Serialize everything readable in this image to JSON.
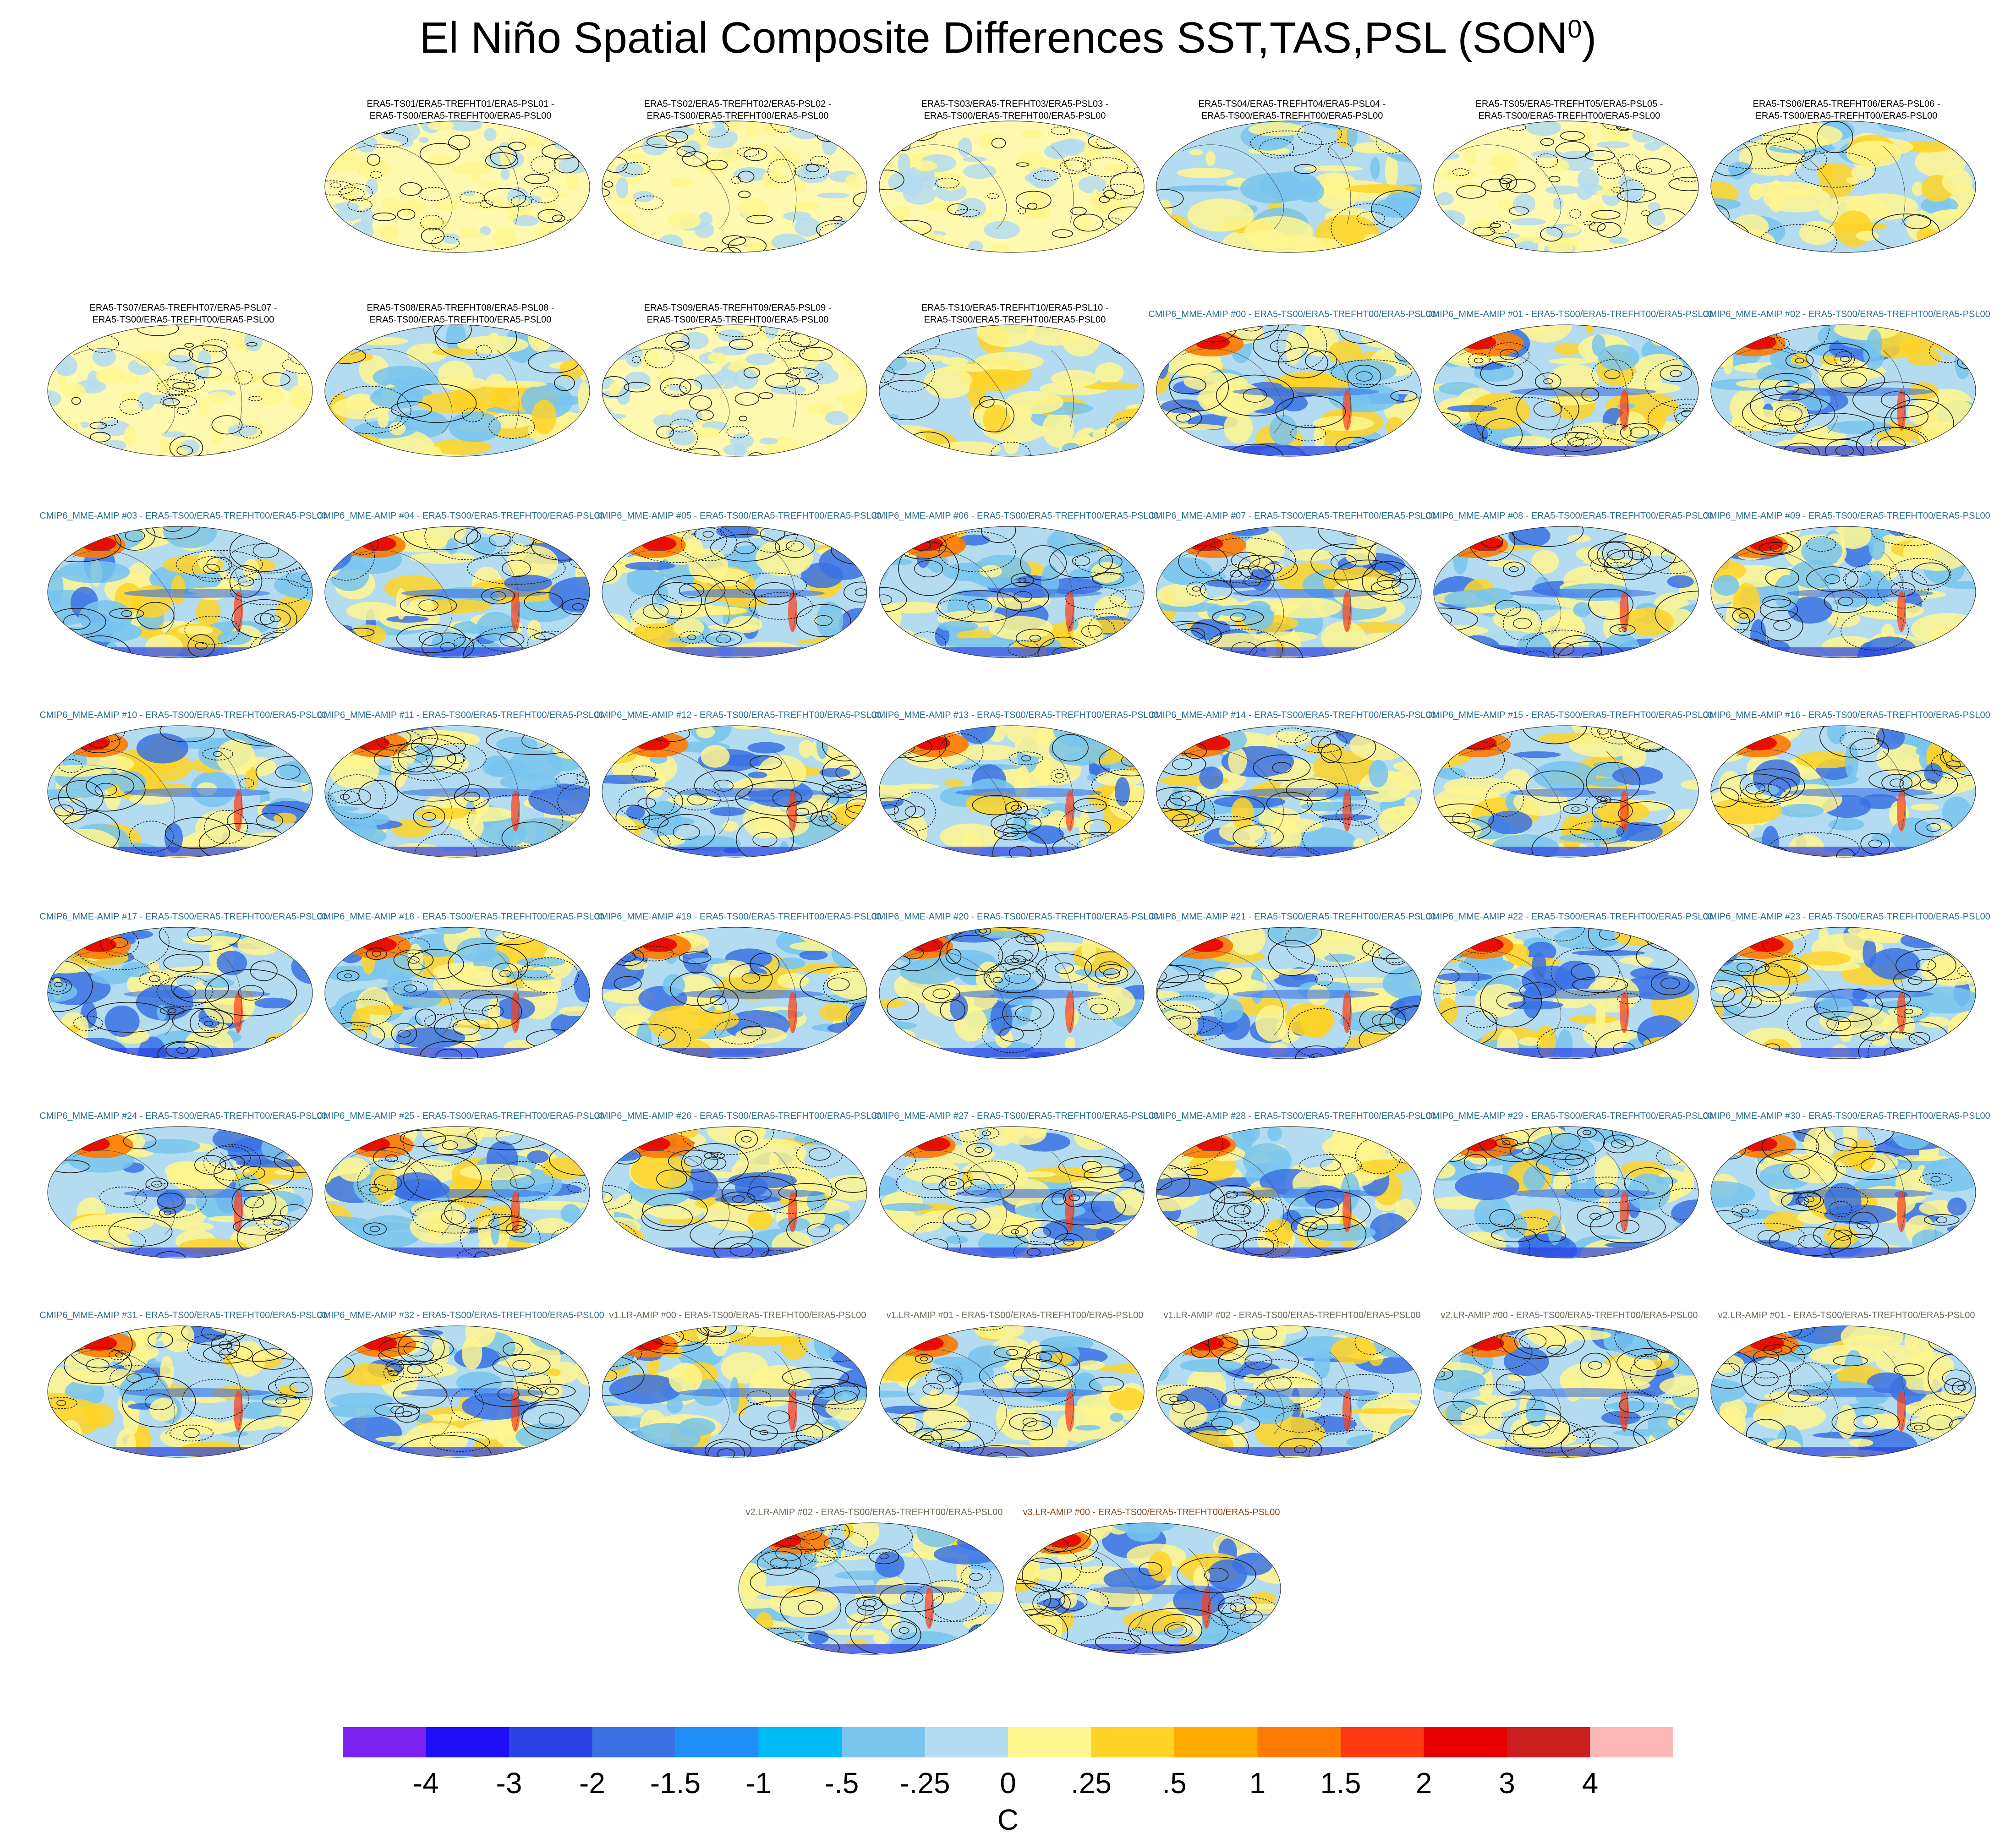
{
  "title_main": "El Niño Spatial Composite Differences SST,TAS,PSL (SON",
  "title_sup": "0",
  "title_end": ")",
  "colors": {
    "ocean_base": "#b4dcf0",
    "warm": "#fff68f",
    "hot": "#ff4a1a",
    "cold": "#3a7be0",
    "contour": "#1a1a1a"
  },
  "panels": [
    {
      "l1": "ERA5-TS01/ERA5-TREFHT01/ERA5-PSL01 -",
      "l2": "ERA5-TS00/ERA5-TREFHT00/ERA5-PSL00",
      "style": "obs",
      "kind": "noise"
    },
    {
      "l1": "ERA5-TS02/ERA5-TREFHT02/ERA5-PSL02 -",
      "l2": "ERA5-TS00/ERA5-TREFHT00/ERA5-PSL00",
      "style": "obs",
      "kind": "noise"
    },
    {
      "l1": "ERA5-TS03/ERA5-TREFHT03/ERA5-PSL03 -",
      "l2": "ERA5-TS00/ERA5-TREFHT00/ERA5-PSL00",
      "style": "obs",
      "kind": "noise"
    },
    {
      "l1": "ERA5-TS04/ERA5-TREFHT04/ERA5-PSL04 -",
      "l2": "ERA5-TS00/ERA5-TREFHT00/ERA5-PSL00",
      "style": "obs",
      "kind": "mild"
    },
    {
      "l1": "ERA5-TS05/ERA5-TREFHT05/ERA5-PSL05 -",
      "l2": "ERA5-TS00/ERA5-TREFHT00/ERA5-PSL00",
      "style": "obs",
      "kind": "noise"
    },
    {
      "l1": "ERA5-TS06/ERA5-TREFHT06/ERA5-PSL06 -",
      "l2": "ERA5-TS00/ERA5-TREFHT00/ERA5-PSL00",
      "style": "obs",
      "kind": "mild"
    },
    {
      "l1": "ERA5-TS07/ERA5-TREFHT07/ERA5-PSL07 -",
      "l2": "ERA5-TS00/ERA5-TREFHT00/ERA5-PSL00",
      "style": "obs",
      "kind": "noise"
    },
    {
      "l1": "ERA5-TS08/ERA5-TREFHT08/ERA5-PSL08 -",
      "l2": "ERA5-TS00/ERA5-TREFHT00/ERA5-PSL00",
      "style": "obs",
      "kind": "mild"
    },
    {
      "l1": "ERA5-TS09/ERA5-TREFHT09/ERA5-PSL09 -",
      "l2": "ERA5-TS00/ERA5-TREFHT00/ERA5-PSL00",
      "style": "obs",
      "kind": "noise"
    },
    {
      "l1": "ERA5-TS10/ERA5-TREFHT10/ERA5-PSL10 -",
      "l2": "ERA5-TS00/ERA5-TREFHT00/ERA5-PSL00",
      "style": "obs",
      "kind": "mild"
    },
    {
      "l1": "CMIP6_MME-AMIP  #00 - ERA5-TS00/ERA5-TREFHT00/ERA5-PSL00",
      "l2": "",
      "style": "sub",
      "kind": "model"
    },
    {
      "l1": "CMIP6_MME-AMIP  #01 - ERA5-TS00/ERA5-TREFHT00/ERA5-PSL00",
      "l2": "",
      "style": "sub",
      "kind": "model"
    },
    {
      "l1": "CMIP6_MME-AMIP  #02 - ERA5-TS00/ERA5-TREFHT00/ERA5-PSL00",
      "l2": "",
      "style": "sub",
      "kind": "model"
    },
    {
      "l1": "CMIP6_MME-AMIP  #03 - ERA5-TS00/ERA5-TREFHT00/ERA5-PSL00",
      "l2": "",
      "style": "sub",
      "kind": "model"
    },
    {
      "l1": "CMIP6_MME-AMIP  #04 - ERA5-TS00/ERA5-TREFHT00/ERA5-PSL00",
      "l2": "",
      "style": "sub",
      "kind": "model"
    },
    {
      "l1": "CMIP6_MME-AMIP  #05 - ERA5-TS00/ERA5-TREFHT00/ERA5-PSL00",
      "l2": "",
      "style": "sub",
      "kind": "model"
    },
    {
      "l1": "CMIP6_MME-AMIP  #06 - ERA5-TS00/ERA5-TREFHT00/ERA5-PSL00",
      "l2": "",
      "style": "sub",
      "kind": "model"
    },
    {
      "l1": "CMIP6_MME-AMIP  #07 - ERA5-TS00/ERA5-TREFHT00/ERA5-PSL00",
      "l2": "",
      "style": "sub",
      "kind": "model"
    },
    {
      "l1": "CMIP6_MME-AMIP  #08 - ERA5-TS00/ERA5-TREFHT00/ERA5-PSL00",
      "l2": "",
      "style": "sub",
      "kind": "model"
    },
    {
      "l1": "CMIP6_MME-AMIP  #09 - ERA5-TS00/ERA5-TREFHT00/ERA5-PSL00",
      "l2": "",
      "style": "sub",
      "kind": "model"
    },
    {
      "l1": "CMIP6_MME-AMIP  #10 - ERA5-TS00/ERA5-TREFHT00/ERA5-PSL00",
      "l2": "",
      "style": "sub",
      "kind": "model"
    },
    {
      "l1": "CMIP6_MME-AMIP  #11 - ERA5-TS00/ERA5-TREFHT00/ERA5-PSL00",
      "l2": "",
      "style": "sub",
      "kind": "model"
    },
    {
      "l1": "CMIP6_MME-AMIP  #12 - ERA5-TS00/ERA5-TREFHT00/ERA5-PSL00",
      "l2": "",
      "style": "sub",
      "kind": "model"
    },
    {
      "l1": "CMIP6_MME-AMIP  #13 - ERA5-TS00/ERA5-TREFHT00/ERA5-PSL00",
      "l2": "",
      "style": "sub",
      "kind": "model"
    },
    {
      "l1": "CMIP6_MME-AMIP  #14 - ERA5-TS00/ERA5-TREFHT00/ERA5-PSL00",
      "l2": "",
      "style": "sub",
      "kind": "model"
    },
    {
      "l1": "CMIP6_MME-AMIP  #15 - ERA5-TS00/ERA5-TREFHT00/ERA5-PSL00",
      "l2": "",
      "style": "sub",
      "kind": "model"
    },
    {
      "l1": "CMIP6_MME-AMIP  #16 - ERA5-TS00/ERA5-TREFHT00/ERA5-PSL00",
      "l2": "",
      "style": "sub",
      "kind": "model"
    },
    {
      "l1": "CMIP6_MME-AMIP  #17 - ERA5-TS00/ERA5-TREFHT00/ERA5-PSL00",
      "l2": "",
      "style": "sub",
      "kind": "model"
    },
    {
      "l1": "CMIP6_MME-AMIP  #18 - ERA5-TS00/ERA5-TREFHT00/ERA5-PSL00",
      "l2": "",
      "style": "sub",
      "kind": "model"
    },
    {
      "l1": "CMIP6_MME-AMIP  #19 - ERA5-TS00/ERA5-TREFHT00/ERA5-PSL00",
      "l2": "",
      "style": "sub",
      "kind": "model"
    },
    {
      "l1": "CMIP6_MME-AMIP  #20 - ERA5-TS00/ERA5-TREFHT00/ERA5-PSL00",
      "l2": "",
      "style": "sub",
      "kind": "model"
    },
    {
      "l1": "CMIP6_MME-AMIP  #21 - ERA5-TS00/ERA5-TREFHT00/ERA5-PSL00",
      "l2": "",
      "style": "sub",
      "kind": "model"
    },
    {
      "l1": "CMIP6_MME-AMIP  #22 - ERA5-TS00/ERA5-TREFHT00/ERA5-PSL00",
      "l2": "",
      "style": "sub",
      "kind": "model"
    },
    {
      "l1": "CMIP6_MME-AMIP  #23 - ERA5-TS00/ERA5-TREFHT00/ERA5-PSL00",
      "l2": "",
      "style": "sub",
      "kind": "model"
    },
    {
      "l1": "CMIP6_MME-AMIP  #24 - ERA5-TS00/ERA5-TREFHT00/ERA5-PSL00",
      "l2": "",
      "style": "sub",
      "kind": "model"
    },
    {
      "l1": "CMIP6_MME-AMIP  #25 - ERA5-TS00/ERA5-TREFHT00/ERA5-PSL00",
      "l2": "",
      "style": "sub",
      "kind": "model"
    },
    {
      "l1": "CMIP6_MME-AMIP  #26 - ERA5-TS00/ERA5-TREFHT00/ERA5-PSL00",
      "l2": "",
      "style": "sub",
      "kind": "model"
    },
    {
      "l1": "CMIP6_MME-AMIP  #27 - ERA5-TS00/ERA5-TREFHT00/ERA5-PSL00",
      "l2": "",
      "style": "sub",
      "kind": "model"
    },
    {
      "l1": "CMIP6_MME-AMIP  #28 - ERA5-TS00/ERA5-TREFHT00/ERA5-PSL00",
      "l2": "",
      "style": "sub",
      "kind": "model"
    },
    {
      "l1": "CMIP6_MME-AMIP  #29 - ERA5-TS00/ERA5-TREFHT00/ERA5-PSL00",
      "l2": "",
      "style": "sub",
      "kind": "model"
    },
    {
      "l1": "CMIP6_MME-AMIP  #30 - ERA5-TS00/ERA5-TREFHT00/ERA5-PSL00",
      "l2": "",
      "style": "sub",
      "kind": "model"
    },
    {
      "l1": "CMIP6_MME-AMIP  #31 - ERA5-TS00/ERA5-TREFHT00/ERA5-PSL00",
      "l2": "",
      "style": "sub",
      "kind": "model"
    },
    {
      "l1": "CMIP6_MME-AMIP  #32 - ERA5-TS00/ERA5-TREFHT00/ERA5-PSL00",
      "l2": "",
      "style": "sub",
      "kind": "model"
    },
    {
      "l1": "v1.LR-AMIP  #00 - ERA5-TS00/ERA5-TREFHT00/ERA5-PSL00",
      "l2": "",
      "style": "grey",
      "kind": "model"
    },
    {
      "l1": "v1.LR-AMIP  #01 - ERA5-TS00/ERA5-TREFHT00/ERA5-PSL00",
      "l2": "",
      "style": "grey",
      "kind": "model"
    },
    {
      "l1": "v1.LR-AMIP  #02 - ERA5-TS00/ERA5-TREFHT00/ERA5-PSL00",
      "l2": "",
      "style": "grey",
      "kind": "model"
    },
    {
      "l1": "v2.LR-AMIP  #00 - ERA5-TS00/ERA5-TREFHT00/ERA5-PSL00",
      "l2": "",
      "style": "grey",
      "kind": "model"
    },
    {
      "l1": "v2.LR-AMIP  #01 - ERA5-TS00/ERA5-TREFHT00/ERA5-PSL00",
      "l2": "",
      "style": "grey",
      "kind": "model"
    },
    {
      "l1": "v2.LR-AMIP  #02 - ERA5-TS00/ERA5-TREFHT00/ERA5-PSL00",
      "l2": "",
      "style": "grey",
      "kind": "model"
    },
    {
      "l1": "v3.LR-AMIP  #00 - ERA5-TS00/ERA5-TREFHT00/ERA5-PSL00",
      "l2": "",
      "style": "brown",
      "kind": "model"
    }
  ],
  "colorbar": {
    "colors": [
      "#7b22f0",
      "#1e0ef5",
      "#2a42e6",
      "#3a72e4",
      "#1f8ff7",
      "#00bcf6",
      "#78c4ee",
      "#b4dcf0",
      "#fff68f",
      "#ffd426",
      "#ffaa00",
      "#ff7a00",
      "#ff3a12",
      "#e80000",
      "#cc1f1f",
      "#ffb8b8"
    ],
    "labels": [
      "-4",
      "-3",
      "-2",
      "-1.5",
      "-1",
      "-.5",
      "-.25",
      "0",
      ".25",
      ".5",
      "1",
      "1.5",
      "2",
      "3",
      "4"
    ],
    "unit": "C"
  }
}
